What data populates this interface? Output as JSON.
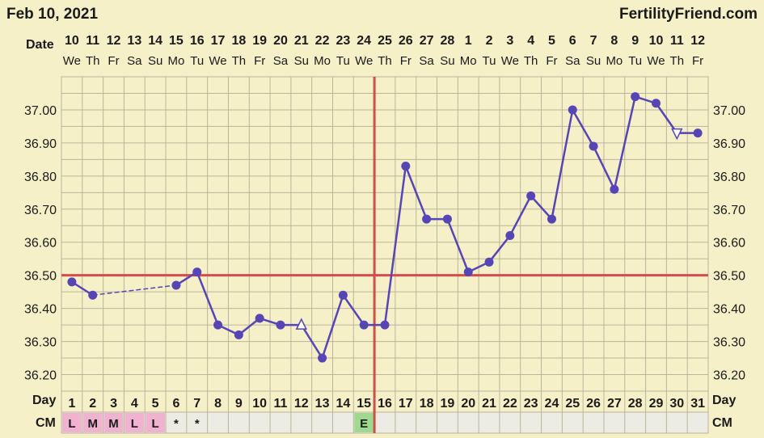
{
  "header": {
    "date": "Feb 10, 2021",
    "brand": "FertilityFriend.com"
  },
  "labels": {
    "date_row": "Date",
    "day_row": "Day",
    "cm_row": "CM"
  },
  "colors": {
    "background": "#f6f0c9",
    "grid": "#b9b59a",
    "series": "#5545b5",
    "reference": "#d94a4a",
    "cm_pink": "#efb3cf",
    "cm_green": "#9fd98f"
  },
  "chart_data": {
    "type": "line",
    "x": [
      1,
      2,
      3,
      4,
      5,
      6,
      7,
      8,
      9,
      10,
      11,
      12,
      13,
      14,
      15,
      16,
      17,
      18,
      19,
      20,
      21,
      22,
      23,
      24,
      25,
      26,
      27,
      28,
      29,
      30,
      31
    ],
    "dates": [
      "10",
      "11",
      "12",
      "13",
      "14",
      "15",
      "16",
      "17",
      "18",
      "19",
      "20",
      "21",
      "22",
      "23",
      "24",
      "25",
      "26",
      "27",
      "28",
      "1",
      "2",
      "3",
      "4",
      "5",
      "6",
      "7",
      "8",
      "9",
      "10",
      "11",
      "12"
    ],
    "weekdays": [
      "We",
      "Th",
      "Fr",
      "Sa",
      "Su",
      "Mo",
      "Tu",
      "We",
      "Th",
      "Fr",
      "Sa",
      "Su",
      "Mo",
      "Tu",
      "We",
      "Th",
      "Fr",
      "Sa",
      "Su",
      "Mo",
      "Tu",
      "We",
      "Th",
      "Fr",
      "Sa",
      "Su",
      "Mo",
      "Tu",
      "We",
      "Th",
      "Fr"
    ],
    "series": [
      {
        "values": [
          36.48,
          36.44,
          null,
          null,
          null,
          36.47,
          36.51,
          36.35,
          36.32,
          36.37,
          36.35,
          36.35,
          36.25,
          36.44,
          36.35,
          36.35,
          36.83,
          36.67,
          36.67,
          36.51,
          36.54,
          36.62,
          36.74,
          36.67,
          37.0,
          36.89,
          36.76,
          37.04,
          37.02,
          36.93,
          36.93
        ]
      }
    ],
    "marker_types": [
      "dot",
      "dot",
      "none",
      "none",
      "none",
      "dot",
      "dot",
      "dot",
      "dot",
      "dot",
      "dot",
      "open-triangle",
      "dot",
      "dot",
      "dot",
      "dot",
      "dot",
      "dot",
      "dot",
      "dot",
      "dot",
      "dot",
      "dot",
      "dot",
      "dot",
      "dot",
      "dot",
      "dot",
      "dot",
      "open-triangle-down",
      "dot"
    ],
    "ylim": [
      36.15,
      37.1
    ],
    "yticks": [
      "36.20",
      "36.30",
      "36.40",
      "36.50",
      "36.60",
      "36.70",
      "36.80",
      "36.90",
      "37.00"
    ],
    "coverline": 36.5,
    "ovulation_day": 16,
    "cervical_mucus": [
      "L",
      "M",
      "M",
      "L",
      "L",
      "*",
      "*",
      "",
      "",
      "",
      "",
      "",
      "",
      "",
      "E",
      "",
      "",
      "",
      "",
      "",
      "",
      "",
      "",
      "",
      "",
      "",
      "",
      "",
      "",
      "",
      ""
    ],
    "grid": true
  }
}
